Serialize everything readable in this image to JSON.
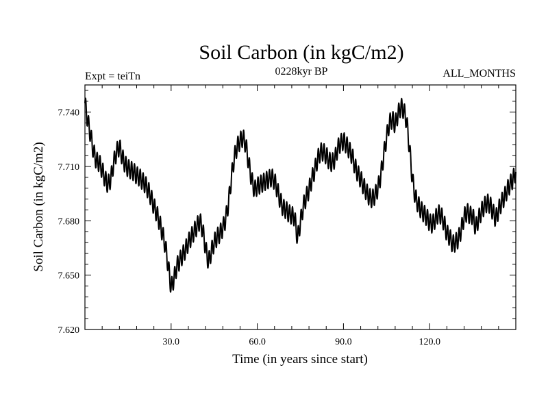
{
  "chart_data": {
    "type": "line",
    "title": "Soil Carbon (in kgC/m2)",
    "subtitle": "0228kyr BP",
    "left_note": "Expt = teiTn",
    "right_note": "ALL_MONTHS",
    "xlabel": "Time (in years since start)",
    "ylabel": "Soil Carbon (in kgC/m2)",
    "xlim": [
      0,
      150
    ],
    "ylim": [
      7.62,
      7.755
    ],
    "x_ticks": [
      30,
      60,
      90,
      120
    ],
    "x_tick_labels": [
      "30.0",
      "60.0",
      "90.0",
      "120.0"
    ],
    "y_ticks": [
      7.62,
      7.65,
      7.68,
      7.71,
      7.74
    ],
    "y_tick_labels": [
      "7.620",
      "7.650",
      "7.680",
      "7.710",
      "7.740"
    ],
    "grid": false,
    "seasonal_amplitude": 0.005,
    "series": [
      {
        "x": [
          0,
          1,
          2,
          3,
          4,
          5,
          6,
          7,
          8,
          9,
          10,
          11,
          12,
          13,
          14,
          15,
          16,
          17,
          18,
          19,
          20,
          21,
          22,
          23,
          24,
          25,
          26,
          27,
          28,
          29,
          30,
          31,
          32,
          33,
          34,
          35,
          36,
          37,
          38,
          39,
          40,
          41,
          42,
          43,
          44,
          45,
          46,
          47,
          48,
          49,
          50,
          51,
          52,
          53,
          54,
          55,
          56,
          57,
          58,
          59,
          60,
          61,
          62,
          63,
          64,
          65,
          66,
          67,
          68,
          69,
          70,
          71,
          72,
          73,
          74,
          75,
          76,
          77,
          78,
          79,
          80,
          81,
          82,
          83,
          84,
          85,
          86,
          87,
          88,
          89,
          90,
          91,
          92,
          93,
          94,
          95,
          96,
          97,
          98,
          99,
          100,
          101,
          102,
          103,
          104,
          105,
          106,
          107,
          108,
          109,
          110,
          111,
          112,
          113,
          114,
          115,
          116,
          117,
          118,
          119,
          120,
          121,
          122,
          123,
          124,
          125,
          126,
          127,
          128,
          129,
          130,
          131,
          132,
          133,
          134,
          135,
          136,
          137,
          138,
          139,
          140,
          141,
          142,
          143,
          144,
          145,
          146,
          147,
          148,
          149,
          150
        ],
        "y": [
          7.745,
          7.735,
          7.727,
          7.718,
          7.713,
          7.712,
          7.708,
          7.703,
          7.7,
          7.703,
          7.712,
          7.718,
          7.721,
          7.715,
          7.711,
          7.709,
          7.708,
          7.707,
          7.705,
          7.704,
          7.702,
          7.7,
          7.697,
          7.693,
          7.688,
          7.684,
          7.679,
          7.673,
          7.666,
          7.655,
          7.643,
          7.648,
          7.655,
          7.658,
          7.661,
          7.664,
          7.668,
          7.671,
          7.674,
          7.677,
          7.68,
          7.675,
          7.665,
          7.657,
          7.663,
          7.668,
          7.671,
          7.673,
          7.676,
          7.681,
          7.69,
          7.704,
          7.715,
          7.721,
          7.724,
          7.726,
          7.722,
          7.712,
          7.703,
          7.697,
          7.699,
          7.7,
          7.701,
          7.702,
          7.703,
          7.704,
          7.702,
          7.697,
          7.691,
          7.687,
          7.686,
          7.684,
          7.683,
          7.682,
          7.67,
          7.679,
          7.688,
          7.693,
          7.697,
          7.703,
          7.708,
          7.714,
          7.718,
          7.718,
          7.716,
          7.713,
          7.712,
          7.714,
          7.72,
          7.723,
          7.724,
          7.722,
          7.719,
          7.716,
          7.71,
          7.706,
          7.703,
          7.699,
          7.696,
          7.693,
          7.692,
          7.694,
          7.698,
          7.705,
          7.716,
          7.726,
          7.734,
          7.736,
          7.733,
          7.739,
          7.743,
          7.741,
          7.735,
          7.72,
          7.703,
          7.693,
          7.689,
          7.686,
          7.684,
          7.682,
          7.679,
          7.678,
          7.681,
          7.684,
          7.683,
          7.679,
          7.673,
          7.671,
          7.667,
          7.668,
          7.67,
          7.675,
          7.682,
          7.685,
          7.683,
          7.683,
          7.676,
          7.681,
          7.685,
          7.688,
          7.69,
          7.689,
          7.685,
          7.681,
          7.686,
          7.69,
          7.693,
          7.697,
          7.7,
          7.703,
          7.707
        ]
      }
    ]
  }
}
